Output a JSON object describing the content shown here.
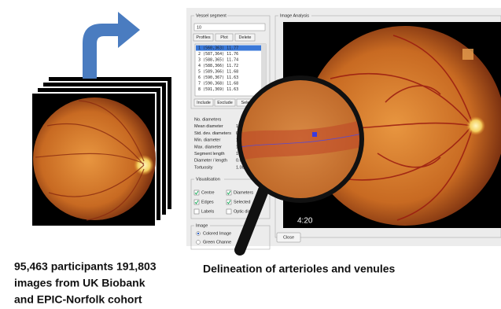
{
  "caption_left": [
    "95,463 participants 191,803",
    "images from UK Biobank",
    "and EPIC-Norfolk cohort"
  ],
  "caption_right": "Delineation of arterioles and venules",
  "software": {
    "vessel_panel": {
      "title": "Vessel segment",
      "dropdown": "10",
      "buttons": [
        "Profiles",
        "Plot",
        "Delete"
      ],
      "list": [
        "1  (560,363)  11.77",
        "2  (587,364)  11.76",
        "3  (588,365)  11.74",
        "4  (588,366)  11.72",
        "5  (589,366)  11.68",
        "6  (590,367)  11.63",
        "7  (590,368)  11.68",
        "8  (591,369)  11.63"
      ],
      "action_buttons": [
        "Include",
        "Exclude",
        "Sele"
      ]
    },
    "stats": [
      {
        "label": "No. diameters"
      },
      {
        "label": "Mean diameter",
        "value": "12"
      },
      {
        "label": "Std. dev. diameters",
        "value": "0."
      },
      {
        "label": "Min. diameter",
        "value": "1"
      },
      {
        "label": "Max. diameter",
        "value": "1"
      },
      {
        "label": "Segment length",
        "value": "1"
      },
      {
        "label": "Diameter / length",
        "value": "0.0"
      },
      {
        "label": "Tortuosity",
        "value": "1.00"
      }
    ],
    "visualisation": {
      "title": "Visualisation",
      "options": [
        {
          "label": "Centre",
          "checked": true
        },
        {
          "label": "Diameters",
          "checked": true
        },
        {
          "label": "Edges",
          "checked": true
        },
        {
          "label": "Selected",
          "checked": true
        },
        {
          "label": "Labels",
          "checked": false
        },
        {
          "label": "Optic disc",
          "checked": false
        }
      ]
    },
    "image_group": {
      "title": "Image",
      "options": [
        "Colored Image",
        "Green Channe"
      ]
    },
    "close": "Close",
    "analysis_title": "Image Analysis",
    "timestamp": "4:20"
  }
}
